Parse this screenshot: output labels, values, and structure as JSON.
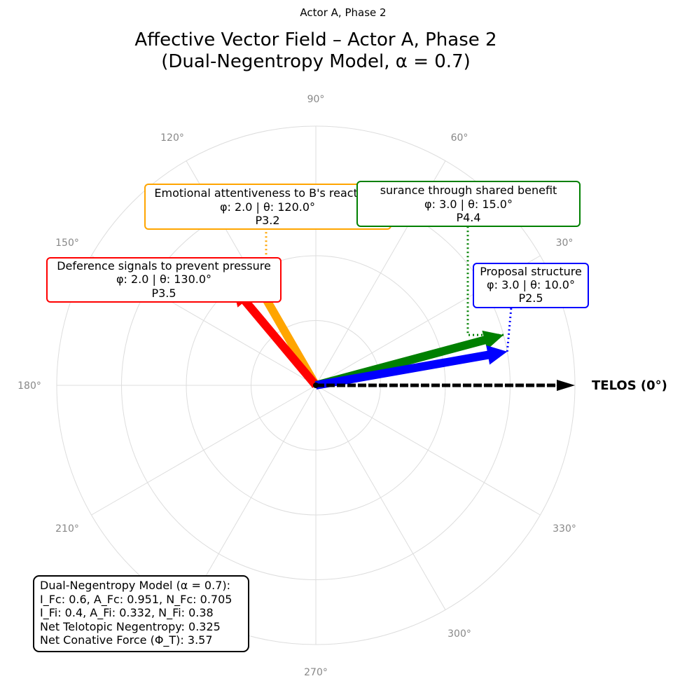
{
  "suptitle": "Actor A, Phase 2",
  "title_line1": "Affective Vector Field – Actor A, Phase 2",
  "title_line2": "(Dual-Negentropy Model, α = 0.7)",
  "chart_data": {
    "type": "polar-vector",
    "rmax": 4,
    "grid": true,
    "angle_ticks": [
      "90°",
      "120°",
      "150°",
      "180°",
      "210°",
      "270°",
      "300°",
      "330°",
      "60°",
      "30°"
    ],
    "vectors": [
      {
        "label": "Emotional attentiveness to B's reactions",
        "phi": 2.0,
        "theta": 120.0,
        "id": "P3.2",
        "color": "#ffa500",
        "line1": "Emotional attentiveness to B's reactions",
        "line2": "φ: 2.0 | θ: 120.0°",
        "line3": "P3.2"
      },
      {
        "label": "Deference signals to prevent pressure",
        "phi": 2.0,
        "theta": 130.0,
        "id": "P3.5",
        "color": "#ff0000",
        "line1": "Deference signals to prevent pressure",
        "line2": "φ: 2.0 | θ: 130.0°",
        "line3": "P3.5"
      },
      {
        "label": "Assurance through shared benefit",
        "phi": 3.0,
        "theta": 15.0,
        "id": "P4.4",
        "color": "#008000",
        "line1": "surance through shared benefit",
        "line2": "φ: 3.0 | θ: 15.0°",
        "line3": "P4.4"
      },
      {
        "label": "Proposal structure",
        "phi": 3.0,
        "theta": 10.0,
        "id": "P2.5",
        "color": "#0000ff",
        "line1": "Proposal structure",
        "line2": "φ: 3.0 | θ: 10.0°",
        "line3": "P2.5"
      }
    ],
    "telos": {
      "label": "TELOS (0°)",
      "theta": 0,
      "color": "#000000"
    }
  },
  "metrics": {
    "line1": "Dual-Negentropy Model (α = 0.7):",
    "line2": "I_Fc: 0.6, A_Fc: 0.951, N_Fc: 0.705",
    "line3": "I_Fi: 0.4, A_Fi: 0.332, N_Fi: 0.38",
    "line4": "Net Telotopic Negentropy: 0.325",
    "line5": "Net Conative Force (Φ_T): 3.57"
  }
}
